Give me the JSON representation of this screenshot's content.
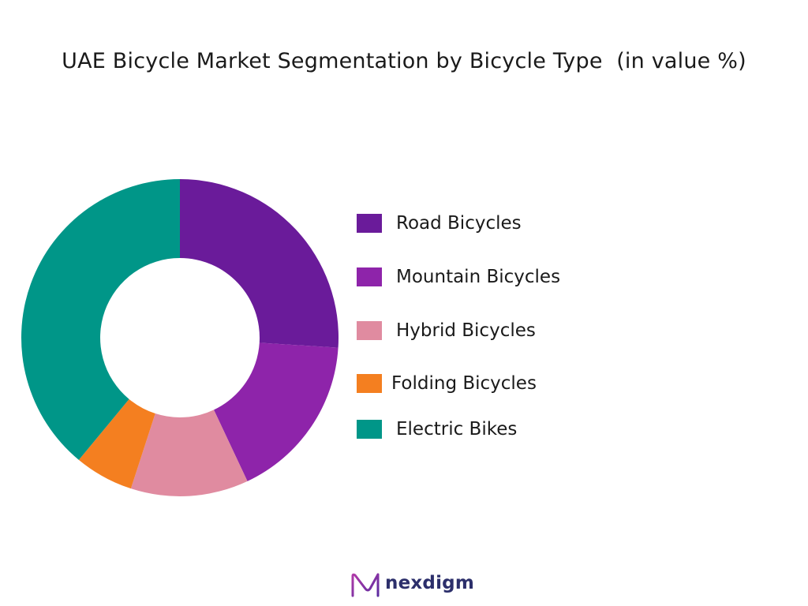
{
  "chart_data": {
    "type": "pie",
    "title": "UAE Bicycle Market Segmentation by Bicycle Type  (in value %)",
    "donut": true,
    "legend_position": "right",
    "series": [
      {
        "name": "Road Bicycles",
        "value": 26,
        "color": "#6A1B9A"
      },
      {
        "name": "Mountain Bicycles",
        "value": 17,
        "color": "#8E24AA"
      },
      {
        "name": "Hybrid Bicycles",
        "value": 12,
        "color": "#E08BA0"
      },
      {
        "name": "Folding Bicycles",
        "value": 6,
        "color": "#F47F20"
      },
      {
        "name": "Electric Bikes",
        "value": 39,
        "color": "#009688"
      }
    ]
  },
  "brand": {
    "name": "nexdigm",
    "icon": "nexdigm-logo-icon",
    "color": "#2c2f6b"
  }
}
